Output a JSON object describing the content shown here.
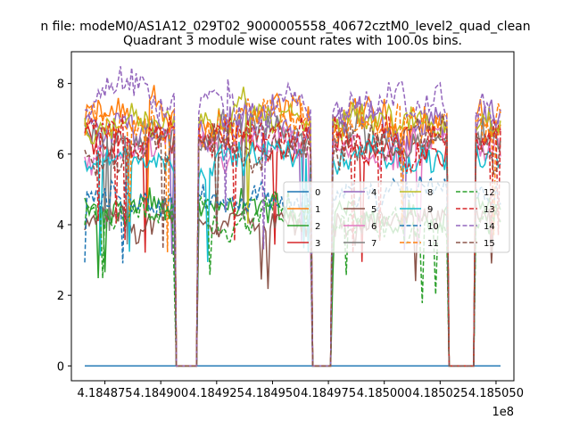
{
  "chart_data": {
    "type": "line",
    "suptitle": "n file: modeM0/AS1A12_029T02_9000005558_40672cztM0_level2_quad_clean",
    "title": "Quadrant 3 module wise count rates with 100.0s bins.",
    "xlabel": "",
    "ylabel": "",
    "x_offset_label": "1e8",
    "xlim": [
      418486000.0,
      418505800.0
    ],
    "ylim": [
      -0.42,
      8.9
    ],
    "x_ticks": [
      418487500.0,
      418490000.0,
      418492500.0,
      418495000.0,
      418497500.0,
      418500000.0,
      418502500.0,
      418505000.0
    ],
    "x_tick_labels": [
      "4.184875",
      "4.184900",
      "4.184925",
      "4.184950",
      "4.184975",
      "4.185000",
      "4.185025",
      "4.185050"
    ],
    "y_ticks": [
      0,
      2,
      4,
      6,
      8
    ],
    "y_tick_labels": [
      "0",
      "2",
      "4",
      "6",
      "8"
    ],
    "grid": false,
    "legend_placement": "center-right",
    "legend_columns": 4,
    "bin_seconds": 100.0,
    "x_start": 418486600.0,
    "x_end": 418505200.0,
    "zero_intervals": [
      [
        418490600.0,
        418491700.0
      ],
      [
        418496700.0,
        418497700.0
      ],
      [
        418502800.0,
        418504100.0
      ]
    ],
    "series": [
      {
        "name": "0",
        "color": "#1f77b4",
        "dash": "solid",
        "level": 0,
        "amp": 0
      },
      {
        "name": "1",
        "color": "#ff7f0e",
        "dash": "solid",
        "level": 6.9,
        "amp": 0.55
      },
      {
        "name": "2",
        "color": "#2ca02c",
        "dash": "solid",
        "level": 4.4,
        "amp": 0.45
      },
      {
        "name": "3",
        "color": "#d62728",
        "dash": "solid",
        "level": 6.3,
        "amp": 0.45
      },
      {
        "name": "4",
        "color": "#9467bd",
        "dash": "solid",
        "level": 6.8,
        "amp": 0.5
      },
      {
        "name": "5",
        "color": "#8c564b",
        "dash": "solid",
        "level": 4.1,
        "amp": 0.4
      },
      {
        "name": "6",
        "color": "#e377c2",
        "dash": "solid",
        "level": 6.0,
        "amp": 0.45
      },
      {
        "name": "7",
        "color": "#7f7f7f",
        "dash": "solid",
        "level": 6.6,
        "amp": 0.5
      },
      {
        "name": "8",
        "color": "#bcbd22",
        "dash": "solid",
        "level": 6.9,
        "amp": 0.5
      },
      {
        "name": "9",
        "color": "#17becf",
        "dash": "solid",
        "level": 5.9,
        "amp": 0.45
      },
      {
        "name": "10",
        "color": "#1f77b4",
        "dash": "dashed",
        "level": 4.8,
        "amp": 0.4
      },
      {
        "name": "11",
        "color": "#ff7f0e",
        "dash": "dashed",
        "level": 7.0,
        "amp": 0.55
      },
      {
        "name": "12",
        "color": "#2ca02c",
        "dash": "dashed",
        "level": 4.3,
        "amp": 0.45
      },
      {
        "name": "13",
        "color": "#d62728",
        "dash": "dashed",
        "level": 6.5,
        "amp": 0.5
      },
      {
        "name": "14",
        "color": "#9467bd",
        "dash": "dashed",
        "level": 7.4,
        "amp": 0.55
      },
      {
        "name": "15",
        "color": "#8c564b",
        "dash": "dashed",
        "level": 6.4,
        "amp": 0.5
      }
    ]
  }
}
